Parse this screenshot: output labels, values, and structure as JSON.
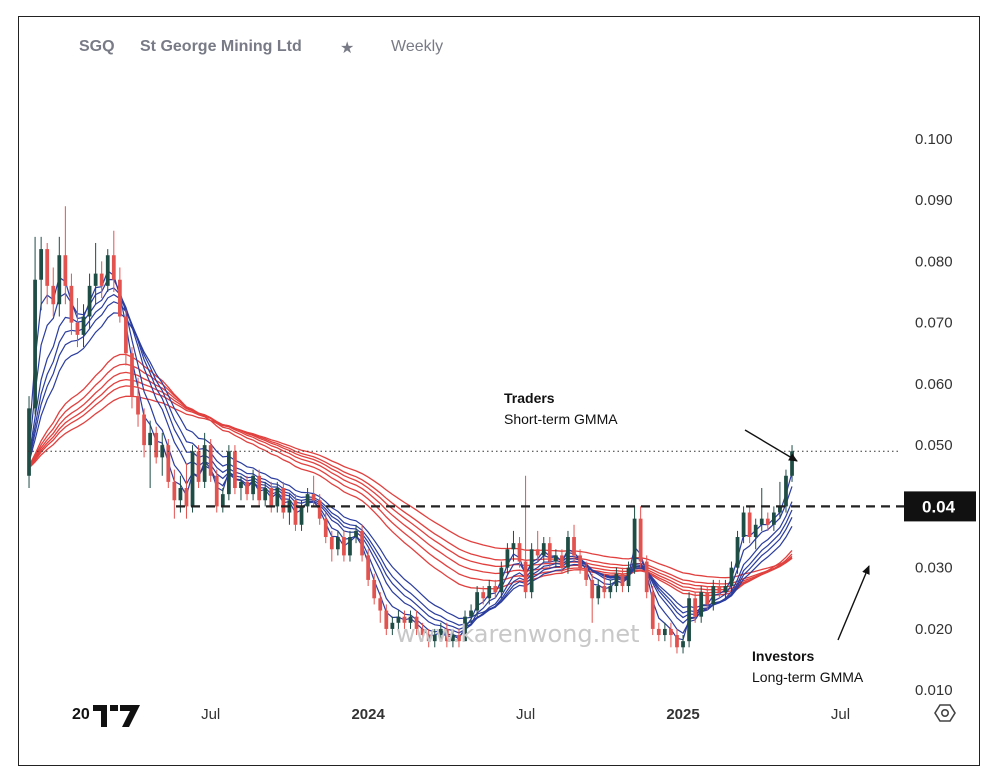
{
  "header": {
    "symbol": "SGQ",
    "name": "St George Mining Ltd",
    "star": "★",
    "interval": "Weekly"
  },
  "colors": {
    "bull": "#1e4d45",
    "bear": "#e2534f",
    "short_gmma": "#2b3d9e",
    "long_gmma": "#e0413f",
    "level_bg": "#111111"
  },
  "watermark": "www.karenwong.net",
  "logo_text": "20",
  "settings_icon": "gear-icon",
  "annotations": {
    "traders_title": "Traders",
    "traders_sub": "Short-term GMMA",
    "investors_title": "Investors",
    "investors_sub": "Long-term GMMA"
  },
  "level_label": "0.04",
  "chart_data": {
    "type": "candlestick",
    "title": "SGQ St George Mining Ltd Weekly",
    "y_ticks": [
      "0.100",
      "0.090",
      "0.080",
      "0.070",
      "0.060",
      "0.050",
      "0.030",
      "0.020",
      "0.010"
    ],
    "y_tick_values": [
      0.1,
      0.09,
      0.08,
      0.07,
      0.06,
      0.05,
      0.03,
      0.02,
      0.01
    ],
    "ylim": [
      0.0035,
      0.1145
    ],
    "x_ticks": [
      {
        "label": "Jul",
        "week": 30,
        "bold": false
      },
      {
        "label": "2024",
        "week": 56,
        "bold": true
      },
      {
        "label": "Jul",
        "week": 82,
        "bold": false
      },
      {
        "label": "2025",
        "week": 108,
        "bold": true
      },
      {
        "label": "Jul",
        "week": 134,
        "bold": false
      }
    ],
    "n_weeks": 144,
    "resistance_level": 0.04,
    "dotted_level": 0.049,
    "short_term_periods": [
      3,
      5,
      8,
      10,
      12,
      15
    ],
    "long_term_periods": [
      30,
      35,
      40,
      45,
      50,
      60
    ],
    "candles": [
      [
        0.045,
        0.058,
        0.043,
        0.056
      ],
      [
        0.056,
        0.084,
        0.055,
        0.077
      ],
      [
        0.077,
        0.084,
        0.072,
        0.082
      ],
      [
        0.082,
        0.083,
        0.073,
        0.076
      ],
      [
        0.076,
        0.079,
        0.071,
        0.073
      ],
      [
        0.073,
        0.084,
        0.071,
        0.081
      ],
      [
        0.081,
        0.089,
        0.073,
        0.076
      ],
      [
        0.076,
        0.078,
        0.068,
        0.07
      ],
      [
        0.07,
        0.074,
        0.066,
        0.068
      ],
      [
        0.068,
        0.073,
        0.066,
        0.071
      ],
      [
        0.071,
        0.078,
        0.069,
        0.076
      ],
      [
        0.076,
        0.083,
        0.073,
        0.078
      ],
      [
        0.078,
        0.08,
        0.074,
        0.076
      ],
      [
        0.076,
        0.082,
        0.075,
        0.081
      ],
      [
        0.081,
        0.085,
        0.075,
        0.077
      ],
      [
        0.077,
        0.079,
        0.07,
        0.071
      ],
      [
        0.071,
        0.072,
        0.063,
        0.065
      ],
      [
        0.065,
        0.066,
        0.056,
        0.058
      ],
      [
        0.058,
        0.061,
        0.053,
        0.055
      ],
      [
        0.055,
        0.056,
        0.048,
        0.05
      ],
      [
        0.05,
        0.054,
        0.043,
        0.052
      ],
      [
        0.052,
        0.053,
        0.047,
        0.048
      ],
      [
        0.048,
        0.052,
        0.045,
        0.05
      ],
      [
        0.05,
        0.051,
        0.043,
        0.044
      ],
      [
        0.044,
        0.046,
        0.038,
        0.041
      ],
      [
        0.041,
        0.045,
        0.039,
        0.043
      ],
      [
        0.043,
        0.047,
        0.038,
        0.04
      ],
      [
        0.04,
        0.05,
        0.039,
        0.049
      ],
      [
        0.049,
        0.05,
        0.043,
        0.044
      ],
      [
        0.044,
        0.052,
        0.043,
        0.05
      ],
      [
        0.05,
        0.051,
        0.044,
        0.045
      ],
      [
        0.045,
        0.046,
        0.039,
        0.04
      ],
      [
        0.04,
        0.043,
        0.039,
        0.042
      ],
      [
        0.042,
        0.05,
        0.041,
        0.049
      ],
      [
        0.049,
        0.05,
        0.042,
        0.043
      ],
      [
        0.043,
        0.045,
        0.041,
        0.044
      ],
      [
        0.044,
        0.045,
        0.041,
        0.042
      ],
      [
        0.042,
        0.046,
        0.041,
        0.045
      ],
      [
        0.045,
        0.046,
        0.04,
        0.041
      ],
      [
        0.041,
        0.044,
        0.04,
        0.043
      ],
      [
        0.043,
        0.044,
        0.039,
        0.04
      ],
      [
        0.04,
        0.044,
        0.039,
        0.043
      ],
      [
        0.043,
        0.044,
        0.038,
        0.039
      ],
      [
        0.039,
        0.042,
        0.037,
        0.041
      ],
      [
        0.041,
        0.042,
        0.036,
        0.037
      ],
      [
        0.037,
        0.041,
        0.036,
        0.04
      ],
      [
        0.04,
        0.043,
        0.039,
        0.042
      ],
      [
        0.042,
        0.045,
        0.04,
        0.041
      ],
      [
        0.041,
        0.042,
        0.037,
        0.038
      ],
      [
        0.038,
        0.039,
        0.034,
        0.035
      ],
      [
        0.035,
        0.036,
        0.031,
        0.033
      ],
      [
        0.033,
        0.036,
        0.032,
        0.035
      ],
      [
        0.035,
        0.036,
        0.031,
        0.032
      ],
      [
        0.032,
        0.036,
        0.031,
        0.035
      ],
      [
        0.035,
        0.037,
        0.034,
        0.036
      ],
      [
        0.036,
        0.037,
        0.031,
        0.032
      ],
      [
        0.032,
        0.033,
        0.027,
        0.028
      ],
      [
        0.028,
        0.029,
        0.024,
        0.025
      ],
      [
        0.025,
        0.026,
        0.021,
        0.023
      ],
      [
        0.023,
        0.024,
        0.019,
        0.02
      ],
      [
        0.02,
        0.022,
        0.019,
        0.021
      ],
      [
        0.021,
        0.023,
        0.02,
        0.022
      ],
      [
        0.022,
        0.023,
        0.02,
        0.021
      ],
      [
        0.021,
        0.023,
        0.02,
        0.022
      ],
      [
        0.022,
        0.023,
        0.019,
        0.02
      ],
      [
        0.02,
        0.021,
        0.018,
        0.019
      ],
      [
        0.019,
        0.02,
        0.017,
        0.018
      ],
      [
        0.018,
        0.02,
        0.017,
        0.019
      ],
      [
        0.019,
        0.021,
        0.018,
        0.02
      ],
      [
        0.02,
        0.021,
        0.017,
        0.018
      ],
      [
        0.018,
        0.02,
        0.017,
        0.019
      ],
      [
        0.019,
        0.02,
        0.017,
        0.018
      ],
      [
        0.018,
        0.023,
        0.018,
        0.022
      ],
      [
        0.022,
        0.024,
        0.021,
        0.023
      ],
      [
        0.023,
        0.027,
        0.022,
        0.026
      ],
      [
        0.026,
        0.027,
        0.024,
        0.025
      ],
      [
        0.025,
        0.028,
        0.024,
        0.027
      ],
      [
        0.027,
        0.028,
        0.025,
        0.026
      ],
      [
        0.026,
        0.031,
        0.025,
        0.03
      ],
      [
        0.03,
        0.034,
        0.029,
        0.033
      ],
      [
        0.033,
        0.036,
        0.031,
        0.034
      ],
      [
        0.034,
        0.035,
        0.03,
        0.031
      ],
      [
        0.031,
        0.045,
        0.025,
        0.026
      ],
      [
        0.026,
        0.034,
        0.025,
        0.033
      ],
      [
        0.033,
        0.036,
        0.031,
        0.032
      ],
      [
        0.032,
        0.035,
        0.031,
        0.034
      ],
      [
        0.034,
        0.035,
        0.03,
        0.031
      ],
      [
        0.031,
        0.033,
        0.03,
        0.032
      ],
      [
        0.032,
        0.033,
        0.029,
        0.03
      ],
      [
        0.03,
        0.036,
        0.029,
        0.035
      ],
      [
        0.035,
        0.037,
        0.031,
        0.032
      ],
      [
        0.032,
        0.033,
        0.029,
        0.03
      ],
      [
        0.03,
        0.031,
        0.027,
        0.028
      ],
      [
        0.028,
        0.029,
        0.021,
        0.025
      ],
      [
        0.025,
        0.028,
        0.024,
        0.027
      ],
      [
        0.027,
        0.029,
        0.025,
        0.026
      ],
      [
        0.026,
        0.028,
        0.025,
        0.027
      ],
      [
        0.027,
        0.03,
        0.026,
        0.029
      ],
      [
        0.029,
        0.03,
        0.026,
        0.027
      ],
      [
        0.027,
        0.031,
        0.026,
        0.03
      ],
      [
        0.03,
        0.04,
        0.029,
        0.038
      ],
      [
        0.038,
        0.04,
        0.03,
        0.031
      ],
      [
        0.031,
        0.032,
        0.025,
        0.026
      ],
      [
        0.026,
        0.027,
        0.019,
        0.02
      ],
      [
        0.02,
        0.021,
        0.018,
        0.019
      ],
      [
        0.019,
        0.021,
        0.018,
        0.02
      ],
      [
        0.02,
        0.021,
        0.017,
        0.019
      ],
      [
        0.019,
        0.02,
        0.016,
        0.017
      ],
      [
        0.017,
        0.019,
        0.016,
        0.018
      ],
      [
        0.018,
        0.026,
        0.017,
        0.025
      ],
      [
        0.025,
        0.026,
        0.021,
        0.022
      ],
      [
        0.022,
        0.027,
        0.021,
        0.026
      ],
      [
        0.026,
        0.027,
        0.023,
        0.024
      ],
      [
        0.024,
        0.028,
        0.023,
        0.027
      ],
      [
        0.027,
        0.028,
        0.025,
        0.026
      ],
      [
        0.026,
        0.028,
        0.025,
        0.027
      ],
      [
        0.027,
        0.031,
        0.026,
        0.03
      ],
      [
        0.03,
        0.036,
        0.029,
        0.035
      ],
      [
        0.035,
        0.04,
        0.034,
        0.039
      ],
      [
        0.039,
        0.04,
        0.034,
        0.035
      ],
      [
        0.035,
        0.038,
        0.033,
        0.037
      ],
      [
        0.037,
        0.043,
        0.036,
        0.038
      ],
      [
        0.038,
        0.039,
        0.036,
        0.037
      ],
      [
        0.037,
        0.04,
        0.036,
        0.039
      ],
      [
        0.039,
        0.044,
        0.038,
        0.04
      ],
      [
        0.04,
        0.046,
        0.039,
        0.045
      ],
      [
        0.045,
        0.05,
        0.044,
        0.049
      ]
    ]
  }
}
